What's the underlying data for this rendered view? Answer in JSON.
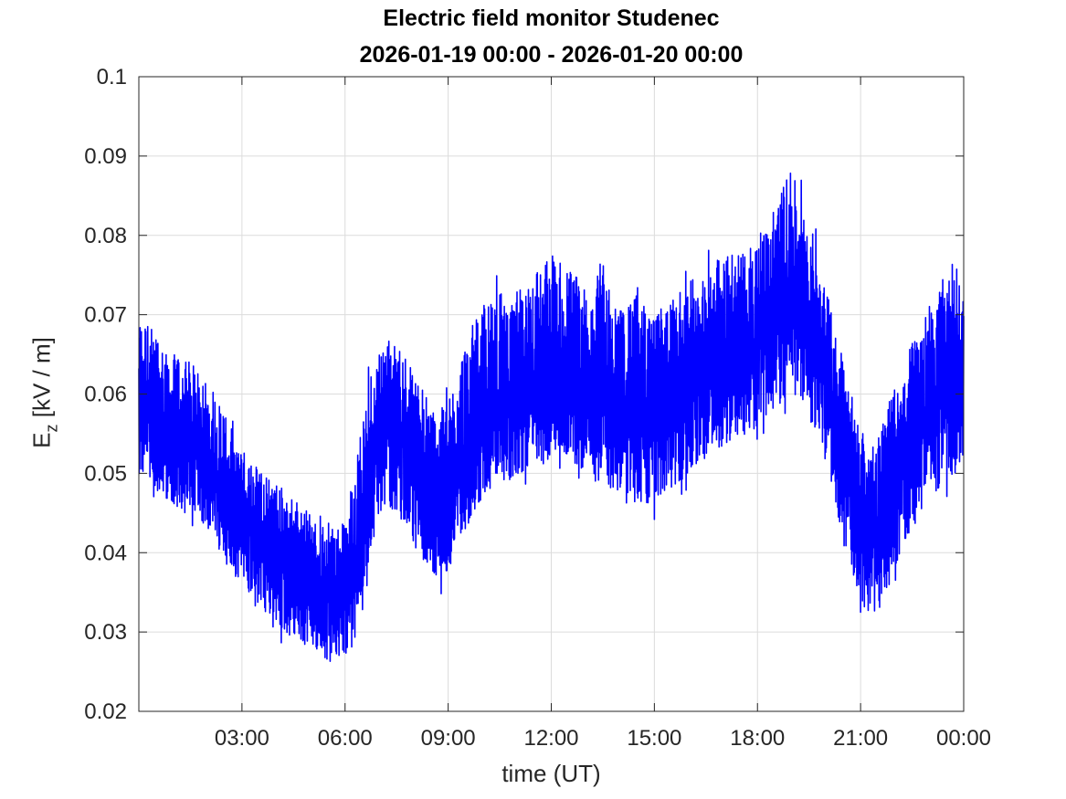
{
  "chart_data": {
    "type": "line",
    "title": "Electric field monitor Studenec",
    "subtitle": "2026-01-19 00:00 - 2026-01-20 00:00",
    "xlabel": "time (UT)",
    "ylabel": {
      "main": "E",
      "subscript": "z",
      "unit": "[kV / m]"
    },
    "xlim": [
      "2026-01-19 00:00",
      "2026-01-20 00:00"
    ],
    "ylim": [
      0.02,
      0.1
    ],
    "x_ticks": [
      "03:00",
      "06:00",
      "09:00",
      "12:00",
      "15:00",
      "18:00",
      "21:00",
      "00:00"
    ],
    "y_ticks": [
      "0.02",
      "0.03",
      "0.04",
      "0.05",
      "0.06",
      "0.07",
      "0.08",
      "0.09",
      "0.1"
    ],
    "grid": true,
    "line_color": "#0000ff",
    "series": [
      {
        "sample_interval": "15 min",
        "x": [
          "00:00",
          "00:15",
          "00:30",
          "00:45",
          "01:00",
          "01:15",
          "01:30",
          "01:45",
          "02:00",
          "02:15",
          "02:30",
          "02:45",
          "03:00",
          "03:15",
          "03:30",
          "03:45",
          "04:00",
          "04:15",
          "04:30",
          "04:45",
          "05:00",
          "05:15",
          "05:30",
          "05:45",
          "06:00",
          "06:15",
          "06:30",
          "06:45",
          "07:00",
          "07:15",
          "07:30",
          "07:45",
          "08:00",
          "08:15",
          "08:30",
          "08:45",
          "09:00",
          "09:15",
          "09:30",
          "09:45",
          "10:00",
          "10:15",
          "10:30",
          "10:45",
          "11:00",
          "11:15",
          "11:30",
          "11:45",
          "12:00",
          "12:15",
          "12:30",
          "12:45",
          "13:00",
          "13:15",
          "13:30",
          "13:45",
          "14:00",
          "14:15",
          "14:30",
          "14:45",
          "15:00",
          "15:15",
          "15:30",
          "15:45",
          "16:00",
          "16:15",
          "16:30",
          "16:45",
          "17:00",
          "17:15",
          "17:30",
          "17:45",
          "18:00",
          "18:15",
          "18:30",
          "18:45",
          "19:00",
          "19:15",
          "19:30",
          "19:45",
          "20:00",
          "20:15",
          "20:30",
          "20:45",
          "21:00",
          "21:15",
          "21:30",
          "21:45",
          "22:00",
          "22:15",
          "22:30",
          "22:45",
          "23:00",
          "23:15",
          "23:30",
          "23:45",
          "24:00"
        ],
        "center": [
          0.058,
          0.057,
          0.056,
          0.055,
          0.055,
          0.054,
          0.054,
          0.053,
          0.052,
          0.05,
          0.048,
          0.046,
          0.045,
          0.043,
          0.041,
          0.04,
          0.039,
          0.039,
          0.038,
          0.037,
          0.036,
          0.035,
          0.034,
          0.034,
          0.035,
          0.038,
          0.043,
          0.05,
          0.055,
          0.056,
          0.055,
          0.053,
          0.05,
          0.048,
          0.046,
          0.045,
          0.046,
          0.049,
          0.052,
          0.054,
          0.056,
          0.057,
          0.058,
          0.058,
          0.059,
          0.059,
          0.06,
          0.06,
          0.061,
          0.061,
          0.061,
          0.06,
          0.06,
          0.059,
          0.059,
          0.058,
          0.058,
          0.058,
          0.058,
          0.058,
          0.058,
          0.059,
          0.06,
          0.061,
          0.062,
          0.063,
          0.064,
          0.065,
          0.065,
          0.066,
          0.066,
          0.066,
          0.067,
          0.068,
          0.069,
          0.07,
          0.071,
          0.07,
          0.068,
          0.065,
          0.062,
          0.057,
          0.052,
          0.048,
          0.044,
          0.042,
          0.043,
          0.046,
          0.049,
          0.052,
          0.054,
          0.056,
          0.058,
          0.06,
          0.062,
          0.063,
          0.062
        ],
        "upper": [
          0.07,
          0.069,
          0.068,
          0.066,
          0.065,
          0.065,
          0.064,
          0.063,
          0.062,
          0.06,
          0.058,
          0.055,
          0.053,
          0.052,
          0.051,
          0.05,
          0.049,
          0.048,
          0.047,
          0.046,
          0.045,
          0.045,
          0.044,
          0.043,
          0.044,
          0.05,
          0.057,
          0.063,
          0.066,
          0.067,
          0.066,
          0.065,
          0.063,
          0.061,
          0.059,
          0.058,
          0.059,
          0.063,
          0.067,
          0.069,
          0.071,
          0.072,
          0.073,
          0.072,
          0.073,
          0.074,
          0.076,
          0.077,
          0.078,
          0.077,
          0.076,
          0.075,
          0.074,
          0.073,
          0.078,
          0.072,
          0.071,
          0.071,
          0.074,
          0.071,
          0.07,
          0.071,
          0.072,
          0.073,
          0.074,
          0.075,
          0.076,
          0.077,
          0.077,
          0.078,
          0.079,
          0.079,
          0.08,
          0.082,
          0.084,
          0.087,
          0.088,
          0.085,
          0.082,
          0.078,
          0.074,
          0.069,
          0.064,
          0.06,
          0.056,
          0.054,
          0.055,
          0.058,
          0.061,
          0.064,
          0.067,
          0.069,
          0.071,
          0.074,
          0.076,
          0.077,
          0.072
        ],
        "lower": [
          0.05,
          0.049,
          0.048,
          0.047,
          0.046,
          0.045,
          0.045,
          0.044,
          0.043,
          0.041,
          0.039,
          0.037,
          0.036,
          0.034,
          0.032,
          0.031,
          0.03,
          0.03,
          0.029,
          0.028,
          0.028,
          0.027,
          0.026,
          0.026,
          0.027,
          0.03,
          0.034,
          0.04,
          0.044,
          0.046,
          0.045,
          0.043,
          0.041,
          0.039,
          0.037,
          0.036,
          0.037,
          0.04,
          0.043,
          0.045,
          0.047,
          0.048,
          0.049,
          0.049,
          0.05,
          0.05,
          0.051,
          0.051,
          0.052,
          0.052,
          0.052,
          0.051,
          0.05,
          0.049,
          0.048,
          0.048,
          0.047,
          0.046,
          0.046,
          0.046,
          0.046,
          0.047,
          0.048,
          0.049,
          0.05,
          0.051,
          0.052,
          0.053,
          0.053,
          0.054,
          0.054,
          0.055,
          0.056,
          0.057,
          0.058,
          0.059,
          0.06,
          0.059,
          0.057,
          0.054,
          0.051,
          0.046,
          0.041,
          0.037,
          0.034,
          0.032,
          0.032,
          0.035,
          0.038,
          0.041,
          0.043,
          0.045,
          0.047,
          0.048,
          0.049,
          0.05,
          0.052
        ]
      }
    ]
  }
}
